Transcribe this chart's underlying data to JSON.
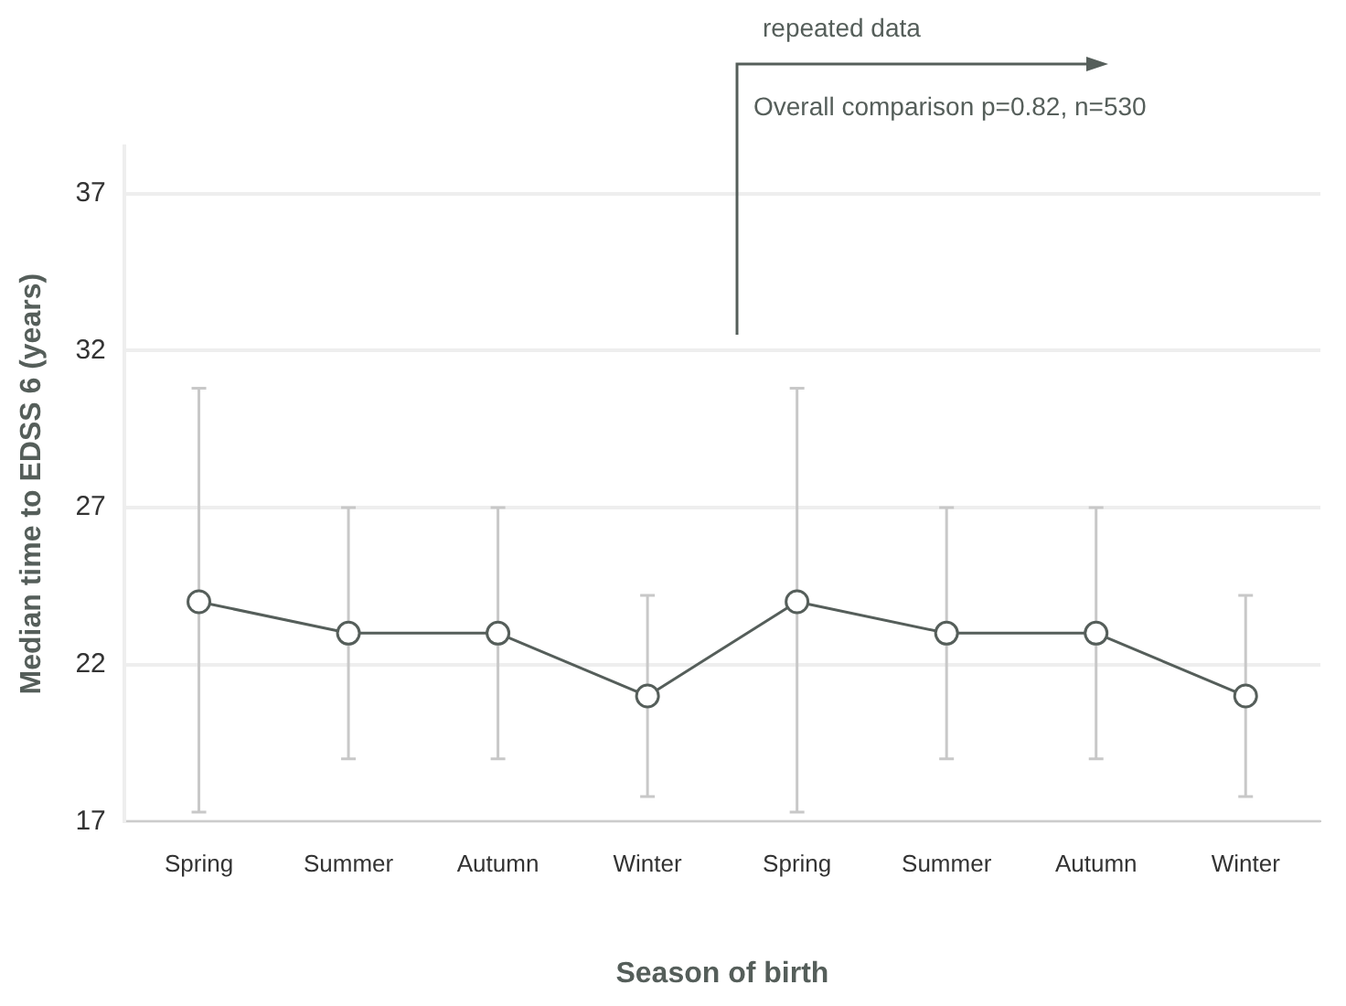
{
  "chart_data": {
    "type": "line",
    "xlabel": "Season of birth",
    "ylabel": "Median time to EDSS 6 (years)",
    "annotations": [
      "repeated data",
      "Overall comparison p=0.82, n=530"
    ],
    "categories": [
      "Spring",
      "Summer",
      "Autumn",
      "Winter",
      "Spring",
      "Summer",
      "Autumn",
      "Winter"
    ],
    "series": [
      {
        "color": "#555e5a",
        "values": [
          24,
          23,
          23,
          21,
          24,
          23,
          23,
          21
        ],
        "errors": [
          [
            17.3,
            30.8
          ],
          [
            19,
            27
          ],
          [
            19,
            27
          ],
          [
            17.8,
            24.2
          ],
          [
            17.3,
            30.8
          ],
          [
            19,
            27
          ],
          [
            19,
            27
          ],
          [
            17.8,
            24.2
          ]
        ]
      }
    ],
    "ylim": [
      17,
      38.5
    ],
    "yticks": [
      17,
      22,
      27,
      32,
      37
    ],
    "grid": "y",
    "legend": false,
    "marker": "circle",
    "line_style": "solid"
  }
}
